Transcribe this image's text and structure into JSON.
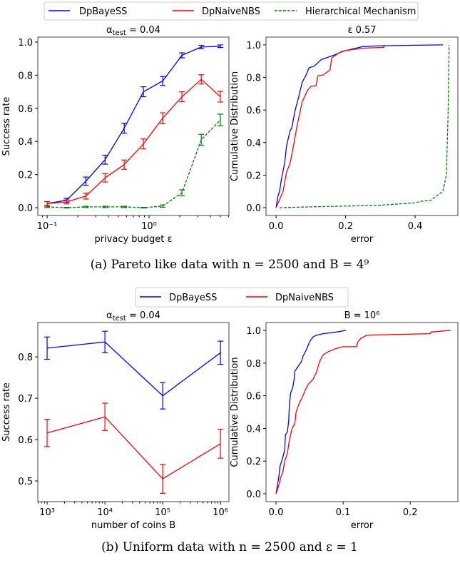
{
  "legends": [
    {
      "items": [
        {
          "label": "DpBayeSS",
          "color": "#0000ff",
          "style": "solid"
        },
        {
          "label": "DpNaiveNBS",
          "color": "#ff0000",
          "style": "solid"
        },
        {
          "label": "Hierarchical Mechanism",
          "color": "#008000",
          "style": "dashed"
        }
      ]
    },
    {
      "items": [
        {
          "label": "DpBayeSS",
          "color": "#0000ff",
          "style": "solid"
        },
        {
          "label": "DpNaiveNBS",
          "color": "#ff0000",
          "style": "solid"
        }
      ]
    }
  ],
  "captions": [
    "(a) Pareto like data with n = 2500 and B = 4⁹",
    "(b) Uniform data with n = 2500 and ε = 1"
  ],
  "chart_data": [
    {
      "type": "line",
      "title": {
        "main": "α",
        "sub": "test",
        "rest": " = 0.04"
      },
      "xlabel": "privacy budget ε",
      "ylabel": "Success rate",
      "xscale": "log",
      "xlim": [
        0.081,
        6.07
      ],
      "ylim": [
        -0.047,
        1.03
      ],
      "xticks": [
        {
          "v": 0.1,
          "label": "10⁻¹"
        },
        {
          "v": 1,
          "label": "10⁰"
        }
      ],
      "yticks": [
        {
          "v": 0,
          "label": "0.0"
        },
        {
          "v": 0.2,
          "label": "0.2"
        },
        {
          "v": 0.4,
          "label": "0.4"
        },
        {
          "v": 0.6,
          "label": "0.6"
        },
        {
          "v": 0.8,
          "label": "0.8"
        },
        {
          "v": 1.0,
          "label": "1.0"
        }
      ],
      "grid": false,
      "x": [
        0.1,
        0.155,
        0.24,
        0.37,
        0.57,
        0.88,
        1.36,
        2.1,
        3.25,
        5.0
      ],
      "series": [
        {
          "name": "DpBayeSS",
          "color": "#0000ff",
          "style": "solid",
          "y": [
            0.025,
            0.045,
            0.16,
            0.29,
            0.48,
            0.7,
            0.765,
            0.92,
            0.97,
            0.975
          ],
          "yerr": [
            0.012,
            0.012,
            0.025,
            0.027,
            0.03,
            0.03,
            0.027,
            0.015,
            0.01,
            0.008
          ]
        },
        {
          "name": "DpNaiveNBS",
          "color": "#ff0000",
          "style": "solid",
          "y": [
            0.025,
            0.035,
            0.07,
            0.18,
            0.26,
            0.385,
            0.54,
            0.67,
            0.775,
            0.67
          ],
          "yerr": [
            0.012,
            0.012,
            0.018,
            0.025,
            0.028,
            0.03,
            0.033,
            0.03,
            0.028,
            0.032
          ]
        },
        {
          "name": "Hierarchical Mechanism",
          "color": "#008000",
          "style": "dashed",
          "y": [
            0.005,
            0.0,
            0.005,
            0.005,
            0.005,
            0.0,
            0.01,
            0.09,
            0.41,
            0.53
          ],
          "yerr": [
            0.004,
            0.002,
            0.004,
            0.004,
            0.004,
            0.002,
            0.007,
            0.018,
            0.033,
            0.035
          ]
        }
      ]
    },
    {
      "type": "line",
      "title": {
        "main": "ε 0.57",
        "sub": "",
        "rest": ""
      },
      "xlabel": "error",
      "ylabel": "Cumulative Distribution",
      "xscale": "linear",
      "xlim": [
        -0.029,
        0.523
      ],
      "ylim": [
        -0.048,
        1.048
      ],
      "xticks": [
        {
          "v": 0,
          "label": "0.0"
        },
        {
          "v": 0.2,
          "label": "0.2"
        },
        {
          "v": 0.4,
          "label": "0.4"
        }
      ],
      "yticks": [
        {
          "v": 0,
          "label": "0.0"
        },
        {
          "v": 0.2,
          "label": "0.2"
        },
        {
          "v": 0.4,
          "label": "0.4"
        },
        {
          "v": 0.6,
          "label": "0.6"
        },
        {
          "v": 0.8,
          "label": "0.8"
        },
        {
          "v": 1.0,
          "label": "1.0"
        }
      ],
      "grid": false,
      "series": [
        {
          "name": "DpBayeSS",
          "color": "#0000ff",
          "style": "solid",
          "points": [
            [
              0,
              0
            ],
            [
              0.005,
              0.07
            ],
            [
              0.01,
              0.1
            ],
            [
              0.015,
              0.17
            ],
            [
              0.025,
              0.28
            ],
            [
              0.03,
              0.38
            ],
            [
              0.04,
              0.47
            ],
            [
              0.045,
              0.49
            ],
            [
              0.055,
              0.6
            ],
            [
              0.065,
              0.68
            ],
            [
              0.075,
              0.77
            ],
            [
              0.085,
              0.81
            ],
            [
              0.095,
              0.86
            ],
            [
              0.11,
              0.87
            ],
            [
              0.13,
              0.91
            ],
            [
              0.15,
              0.925
            ],
            [
              0.17,
              0.94
            ],
            [
              0.19,
              0.96
            ],
            [
              0.25,
              0.99
            ],
            [
              0.3,
              0.995
            ],
            [
              0.48,
              1.0
            ]
          ]
        },
        {
          "name": "DpNaiveNBS",
          "color": "#ff0000",
          "style": "solid",
          "points": [
            [
              0,
              0
            ],
            [
              0.01,
              0.05
            ],
            [
              0.02,
              0.1
            ],
            [
              0.03,
              0.22
            ],
            [
              0.04,
              0.27
            ],
            [
              0.05,
              0.38
            ],
            [
              0.06,
              0.5
            ],
            [
              0.075,
              0.65
            ],
            [
              0.09,
              0.72
            ],
            [
              0.1,
              0.745
            ],
            [
              0.115,
              0.75
            ],
            [
              0.12,
              0.81
            ],
            [
              0.135,
              0.815
            ],
            [
              0.155,
              0.845
            ],
            [
              0.16,
              0.92
            ],
            [
              0.18,
              0.95
            ],
            [
              0.2,
              0.965
            ],
            [
              0.25,
              0.98
            ],
            [
              0.31,
              0.985
            ],
            [
              0.31,
              1.0
            ]
          ]
        },
        {
          "name": "Hierarchical Mechanism",
          "color": "#008000",
          "style": "dashed",
          "points": [
            [
              0.01,
              0.0
            ],
            [
              0.1,
              0.005
            ],
            [
              0.3,
              0.015
            ],
            [
              0.4,
              0.03
            ],
            [
              0.42,
              0.04
            ],
            [
              0.445,
              0.045
            ],
            [
              0.46,
              0.07
            ],
            [
              0.48,
              0.1
            ],
            [
              0.49,
              0.2
            ],
            [
              0.495,
              0.6
            ],
            [
              0.498,
              1.0
            ]
          ]
        }
      ]
    },
    {
      "type": "line",
      "title": {
        "main": "α",
        "sub": "test",
        "rest": " = 0.04"
      },
      "xlabel": "number of coins B",
      "ylabel": "Success rate",
      "xscale": "log",
      "xlim": [
        690,
        1400000
      ],
      "ylim": [
        0.45,
        0.883
      ],
      "xticks": [
        {
          "v": 1000,
          "label": "10³"
        },
        {
          "v": 10000,
          "label": "10⁴"
        },
        {
          "v": 100000,
          "label": "10⁵"
        },
        {
          "v": 1000000,
          "label": "10⁶"
        }
      ],
      "yticks": [
        {
          "v": 0.5,
          "label": "0.5"
        },
        {
          "v": 0.6,
          "label": "0.6"
        },
        {
          "v": 0.7,
          "label": "0.7"
        },
        {
          "v": 0.8,
          "label": "0.8"
        }
      ],
      "grid": false,
      "x": [
        1000,
        10000,
        100000,
        1000000
      ],
      "series": [
        {
          "name": "DpBayeSS",
          "color": "#0000ff",
          "style": "solid",
          "y": [
            0.821,
            0.836,
            0.706,
            0.81
          ],
          "yerr": [
            0.027,
            0.026,
            0.032,
            0.028
          ]
        },
        {
          "name": "DpNaiveNBS",
          "color": "#ff0000",
          "style": "solid",
          "y": [
            0.616,
            0.655,
            0.505,
            0.59
          ],
          "yerr": [
            0.033,
            0.033,
            0.035,
            0.035
          ]
        }
      ]
    },
    {
      "type": "line",
      "title": {
        "main": "B = 10⁶",
        "sub": "",
        "rest": ""
      },
      "xlabel": "error",
      "ylabel": "Cumulative Distribution",
      "xscale": "linear",
      "xlim": [
        -0.0149,
        0.271
      ],
      "ylim": [
        -0.048,
        1.048
      ],
      "xticks": [
        {
          "v": 0,
          "label": "0.0"
        },
        {
          "v": 0.1,
          "label": "0.1"
        },
        {
          "v": 0.2,
          "label": "0.2"
        }
      ],
      "yticks": [
        {
          "v": 0,
          "label": "0.0"
        },
        {
          "v": 0.2,
          "label": "0.2"
        },
        {
          "v": 0.4,
          "label": "0.4"
        },
        {
          "v": 0.6,
          "label": "0.6"
        },
        {
          "v": 0.8,
          "label": "0.8"
        },
        {
          "v": 1.0,
          "label": "1.0"
        }
      ],
      "grid": false,
      "series": [
        {
          "name": "DpBayeSS",
          "color": "#0000ff",
          "style": "solid",
          "points": [
            [
              0,
              0
            ],
            [
              0.002,
              0.05
            ],
            [
              0.004,
              0.1
            ],
            [
              0.006,
              0.17
            ],
            [
              0.01,
              0.22
            ],
            [
              0.013,
              0.27
            ],
            [
              0.014,
              0.36
            ],
            [
              0.017,
              0.38
            ],
            [
              0.019,
              0.45
            ],
            [
              0.02,
              0.55
            ],
            [
              0.022,
              0.62
            ],
            [
              0.025,
              0.65
            ],
            [
              0.027,
              0.7
            ],
            [
              0.028,
              0.75
            ],
            [
              0.033,
              0.78
            ],
            [
              0.038,
              0.81
            ],
            [
              0.04,
              0.84
            ],
            [
              0.045,
              0.88
            ],
            [
              0.05,
              0.93
            ],
            [
              0.055,
              0.96
            ],
            [
              0.06,
              0.97
            ],
            [
              0.07,
              0.98
            ],
            [
              0.09,
              0.99
            ],
            [
              0.104,
              1.0
            ]
          ]
        },
        {
          "name": "DpNaiveNBS",
          "color": "#ff0000",
          "style": "solid",
          "points": [
            [
              0,
              0
            ],
            [
              0.004,
              0.05
            ],
            [
              0.007,
              0.1
            ],
            [
              0.01,
              0.13
            ],
            [
              0.013,
              0.2
            ],
            [
              0.017,
              0.25
            ],
            [
              0.02,
              0.33
            ],
            [
              0.024,
              0.4
            ],
            [
              0.028,
              0.43
            ],
            [
              0.03,
              0.5
            ],
            [
              0.035,
              0.56
            ],
            [
              0.038,
              0.58
            ],
            [
              0.043,
              0.63
            ],
            [
              0.048,
              0.67
            ],
            [
              0.055,
              0.7
            ],
            [
              0.06,
              0.74
            ],
            [
              0.065,
              0.81
            ],
            [
              0.07,
              0.85
            ],
            [
              0.078,
              0.87
            ],
            [
              0.09,
              0.89
            ],
            [
              0.1,
              0.9
            ],
            [
              0.12,
              0.9
            ],
            [
              0.122,
              0.93
            ],
            [
              0.126,
              0.95
            ],
            [
              0.135,
              0.97
            ],
            [
              0.18,
              0.975
            ],
            [
              0.23,
              0.98
            ],
            [
              0.231,
              0.99
            ],
            [
              0.26,
              1.0
            ]
          ]
        }
      ]
    }
  ]
}
